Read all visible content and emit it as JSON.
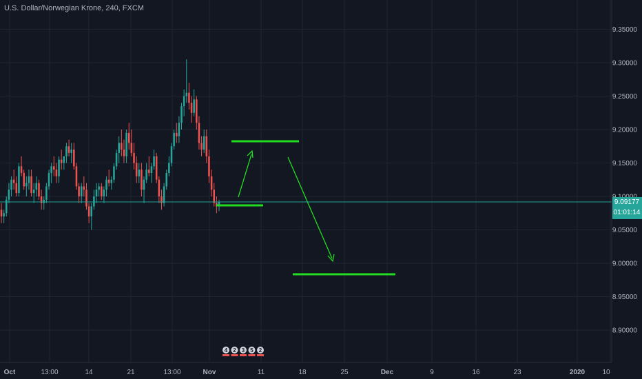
{
  "header": {
    "title": "U.S. Dollar/Norwegian Krone, 240, FXCM"
  },
  "price_tag": {
    "price": "9.09177",
    "countdown": "01:01:14"
  },
  "event_markers": [
    "4",
    "2",
    "3",
    "5",
    "2"
  ],
  "colors": {
    "background": "#131722",
    "grid": "#1f2433",
    "axis_text": "#b2b5be",
    "up": "#26a69a",
    "down": "#ef5350",
    "price_line": "#26a69a",
    "drawing": "#22dd22"
  },
  "chart_data": {
    "type": "candlestick",
    "title": "U.S. Dollar/Norwegian Krone, 240, FXCM",
    "xlabel": "",
    "ylabel": "",
    "y_ticks": [
      "9.35000",
      "9.30000",
      "9.25000",
      "9.20000",
      "9.15000",
      "9.10000",
      "9.05000",
      "9.00000",
      "8.95000",
      "8.90000"
    ],
    "y_tick_values": [
      9.35,
      9.3,
      9.25,
      9.2,
      9.15,
      9.1,
      9.05,
      9.0,
      8.95,
      8.9
    ],
    "ylim": [
      8.84,
      9.39
    ],
    "x_ticks": [
      "Oct",
      "13:00",
      "14",
      "21",
      "13:00",
      "Nov",
      "11",
      "18",
      "25",
      "Dec",
      "9",
      "16",
      "23",
      "2020",
      "10"
    ],
    "x_tick_bold": [
      "Oct",
      "Nov",
      "Dec",
      "2020"
    ],
    "current_price": 9.09177,
    "grid": true,
    "candles_ohlc": [
      [
        9.08,
        9.09,
        9.06,
        9.07
      ],
      [
        9.07,
        9.08,
        9.06,
        9.075
      ],
      [
        9.075,
        9.1,
        9.07,
        9.095
      ],
      [
        9.095,
        9.12,
        9.09,
        9.11
      ],
      [
        9.11,
        9.13,
        9.1,
        9.125
      ],
      [
        9.125,
        9.14,
        9.11,
        9.12
      ],
      [
        9.12,
        9.13,
        9.1,
        9.105
      ],
      [
        9.105,
        9.15,
        9.1,
        9.145
      ],
      [
        9.145,
        9.16,
        9.13,
        9.135
      ],
      [
        9.135,
        9.14,
        9.11,
        9.115
      ],
      [
        9.115,
        9.13,
        9.1,
        9.12
      ],
      [
        9.12,
        9.14,
        9.11,
        9.13
      ],
      [
        9.13,
        9.14,
        9.1,
        9.105
      ],
      [
        9.105,
        9.12,
        9.09,
        9.11
      ],
      [
        9.11,
        9.13,
        9.1,
        9.12
      ],
      [
        9.12,
        9.125,
        9.095,
        9.1
      ],
      [
        9.1,
        9.11,
        9.08,
        9.09
      ],
      [
        9.09,
        9.1,
        9.08,
        9.095
      ],
      [
        9.095,
        9.12,
        9.09,
        9.115
      ],
      [
        9.115,
        9.14,
        9.11,
        9.135
      ],
      [
        9.135,
        9.15,
        9.12,
        9.145
      ],
      [
        9.145,
        9.16,
        9.13,
        9.14
      ],
      [
        9.14,
        9.15,
        9.12,
        9.13
      ],
      [
        9.13,
        9.16,
        9.12,
        9.155
      ],
      [
        9.155,
        9.17,
        9.14,
        9.15
      ],
      [
        9.15,
        9.16,
        9.14,
        9.16
      ],
      [
        9.16,
        9.18,
        9.15,
        9.175
      ],
      [
        9.175,
        9.185,
        9.16,
        9.165
      ],
      [
        9.165,
        9.18,
        9.15,
        9.17
      ],
      [
        9.17,
        9.18,
        9.14,
        9.145
      ],
      [
        9.145,
        9.15,
        9.11,
        9.115
      ],
      [
        9.115,
        9.12,
        9.09,
        9.1
      ],
      [
        9.1,
        9.12,
        9.09,
        9.115
      ],
      [
        9.115,
        9.13,
        9.1,
        9.11
      ],
      [
        9.11,
        9.12,
        9.08,
        9.085
      ],
      [
        9.085,
        9.09,
        9.06,
        9.07
      ],
      [
        9.07,
        9.09,
        9.05,
        9.085
      ],
      [
        9.085,
        9.11,
        9.08,
        9.1
      ],
      [
        9.1,
        9.12,
        9.09,
        9.11
      ],
      [
        9.11,
        9.12,
        9.1,
        9.115
      ],
      [
        9.115,
        9.12,
        9.095,
        9.1
      ],
      [
        9.1,
        9.115,
        9.09,
        9.11
      ],
      [
        9.11,
        9.13,
        9.1,
        9.125
      ],
      [
        9.125,
        9.14,
        9.115,
        9.12
      ],
      [
        9.12,
        9.13,
        9.11,
        9.125
      ],
      [
        9.125,
        9.15,
        9.12,
        9.145
      ],
      [
        9.145,
        9.17,
        9.14,
        9.165
      ],
      [
        9.165,
        9.19,
        9.15,
        9.18
      ],
      [
        9.18,
        9.2,
        9.16,
        9.17
      ],
      [
        9.17,
        9.185,
        9.15,
        9.16
      ],
      [
        9.16,
        9.2,
        9.15,
        9.195
      ],
      [
        9.195,
        9.21,
        9.17,
        9.18
      ],
      [
        9.18,
        9.2,
        9.16,
        9.165
      ],
      [
        9.165,
        9.18,
        9.14,
        9.15
      ],
      [
        9.15,
        9.16,
        9.12,
        9.13
      ],
      [
        9.13,
        9.15,
        9.12,
        9.14
      ],
      [
        9.14,
        9.15,
        9.1,
        9.11
      ],
      [
        9.11,
        9.13,
        9.09,
        9.125
      ],
      [
        9.125,
        9.15,
        9.12,
        9.14
      ],
      [
        9.14,
        9.16,
        9.13,
        9.135
      ],
      [
        9.135,
        9.15,
        9.12,
        9.145
      ],
      [
        9.145,
        9.17,
        9.14,
        9.16
      ],
      [
        9.16,
        9.165,
        9.12,
        9.125
      ],
      [
        9.125,
        9.13,
        9.09,
        9.1
      ],
      [
        9.1,
        9.11,
        9.08,
        9.09
      ],
      [
        9.09,
        9.12,
        9.085,
        9.115
      ],
      [
        9.115,
        9.14,
        9.11,
        9.135
      ],
      [
        9.135,
        9.16,
        9.13,
        9.15
      ],
      [
        9.15,
        9.18,
        9.145,
        9.175
      ],
      [
        9.175,
        9.2,
        9.17,
        9.195
      ],
      [
        9.195,
        9.21,
        9.18,
        9.19
      ],
      [
        9.19,
        9.22,
        9.18,
        9.21
      ],
      [
        9.21,
        9.24,
        9.2,
        9.235
      ],
      [
        9.235,
        9.26,
        9.22,
        9.25
      ],
      [
        9.25,
        9.305,
        9.24,
        9.255
      ],
      [
        9.255,
        9.27,
        9.23,
        9.24
      ],
      [
        9.24,
        9.25,
        9.21,
        9.225
      ],
      [
        9.225,
        9.26,
        9.22,
        9.245
      ],
      [
        9.245,
        9.25,
        9.2,
        9.21
      ],
      [
        9.21,
        9.22,
        9.17,
        9.18
      ],
      [
        9.18,
        9.19,
        9.16,
        9.17
      ],
      [
        9.17,
        9.2,
        9.165,
        9.19
      ],
      [
        9.19,
        9.2,
        9.15,
        9.16
      ],
      [
        9.16,
        9.17,
        9.12,
        9.13
      ],
      [
        9.13,
        9.14,
        9.1,
        9.11
      ],
      [
        9.11,
        9.12,
        9.085,
        9.09
      ],
      [
        9.09,
        9.1,
        9.075,
        9.085
      ],
      [
        9.085,
        9.095,
        9.078,
        9.092
      ]
    ]
  }
}
